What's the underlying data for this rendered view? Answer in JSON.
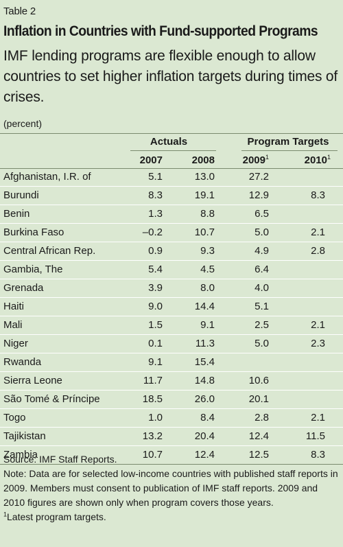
{
  "table_label": "Table 2",
  "title": "Inflation in Countries with Fund-supported Programs",
  "subtitle": "IMF lending programs are flexible enough to allow countries to set higher inflation targets during times of crises.",
  "unit": "(percent)",
  "groups": {
    "actuals": "Actuals",
    "targets": "Program Targets"
  },
  "columns": [
    "2007",
    "2008",
    "2009",
    "2010"
  ],
  "footnote_marker": "1",
  "rows": [
    {
      "country": "Afghanistan, I.R. of",
      "y2007": "5.1",
      "y2008": "13.0",
      "y2009": "27.2",
      "y2010": ""
    },
    {
      "country": "Burundi",
      "y2007": "8.3",
      "y2008": "19.1",
      "y2009": "12.9",
      "y2010": "8.3"
    },
    {
      "country": "Benin",
      "y2007": "1.3",
      "y2008": "8.8",
      "y2009": "6.5",
      "y2010": ""
    },
    {
      "country": "Burkina Faso",
      "y2007": "–0.2",
      "y2008": "10.7",
      "y2009": "5.0",
      "y2010": "2.1"
    },
    {
      "country": "Central African Rep.",
      "y2007": "0.9",
      "y2008": "9.3",
      "y2009": "4.9",
      "y2010": "2.8"
    },
    {
      "country": "Gambia, The",
      "y2007": "5.4",
      "y2008": "4.5",
      "y2009": "6.4",
      "y2010": ""
    },
    {
      "country": "Grenada",
      "y2007": "3.9",
      "y2008": "8.0",
      "y2009": "4.0",
      "y2010": ""
    },
    {
      "country": "Haiti",
      "y2007": "9.0",
      "y2008": "14.4",
      "y2009": "5.1",
      "y2010": ""
    },
    {
      "country": "Mali",
      "y2007": "1.5",
      "y2008": "9.1",
      "y2009": "2.5",
      "y2010": "2.1"
    },
    {
      "country": "Niger",
      "y2007": "0.1",
      "y2008": "11.3",
      "y2009": "5.0",
      "y2010": "2.3"
    },
    {
      "country": "Rwanda",
      "y2007": "9.1",
      "y2008": "15.4",
      "y2009": "",
      "y2010": ""
    },
    {
      "country": "Sierra Leone",
      "y2007": "11.7",
      "y2008": "14.8",
      "y2009": "10.6",
      "y2010": ""
    },
    {
      "country": "São Tomé & Príncipe",
      "y2007": "18.5",
      "y2008": "26.0",
      "y2009": "20.1",
      "y2010": ""
    },
    {
      "country": "Togo",
      "y2007": "1.0",
      "y2008": "8.4",
      "y2009": "2.8",
      "y2010": "2.1"
    },
    {
      "country": "Tajikistan",
      "y2007": "13.2",
      "y2008": "20.4",
      "y2009": "12.4",
      "y2010": "11.5"
    },
    {
      "country": "Zambia",
      "y2007": "10.7",
      "y2008": "12.4",
      "y2009": "12.5",
      "y2010": "8.3"
    }
  ],
  "notes": {
    "source": "Source: IMF Staff Reports.",
    "note": "Note: Data are for selected low-income countries with published staff reports in 2009. Members must consent to publication of IMF staff reports. 2009 and 2010 figures are shown only when program covers those years.",
    "footnote_text": "Latest program targets."
  },
  "colors": {
    "background": "#dbe8d2",
    "rule": "#7a8a6e",
    "row_divider": "#ffffff"
  }
}
